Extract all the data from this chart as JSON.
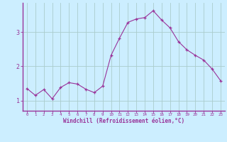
{
  "x": [
    0,
    1,
    2,
    3,
    4,
    5,
    6,
    7,
    8,
    9,
    10,
    11,
    12,
    13,
    14,
    15,
    16,
    17,
    18,
    19,
    20,
    21,
    22,
    23
  ],
  "y": [
    1.35,
    1.15,
    1.32,
    1.05,
    1.38,
    1.52,
    1.48,
    1.33,
    1.23,
    1.42,
    2.32,
    2.82,
    3.28,
    3.38,
    3.42,
    3.62,
    3.35,
    3.12,
    2.72,
    2.48,
    2.32,
    2.18,
    1.92,
    1.58
  ],
  "line_color": "#993399",
  "marker_color": "#993399",
  "bg_color": "#cceeff",
  "grid_color": "#aacccc",
  "axis_color": "#993399",
  "tick_color": "#993399",
  "xlabel": "Windchill (Refroidissement éolien,°C)",
  "ylabel": "",
  "yticks": [
    1,
    2,
    3
  ],
  "xticks": [
    0,
    1,
    2,
    3,
    4,
    5,
    6,
    7,
    8,
    9,
    10,
    11,
    12,
    13,
    14,
    15,
    16,
    17,
    18,
    19,
    20,
    21,
    22,
    23
  ],
  "xlim": [
    -0.5,
    23.5
  ],
  "ylim": [
    0.7,
    3.85
  ],
  "left_spine_color": "#993399",
  "bottom_spine_color": "#993399"
}
